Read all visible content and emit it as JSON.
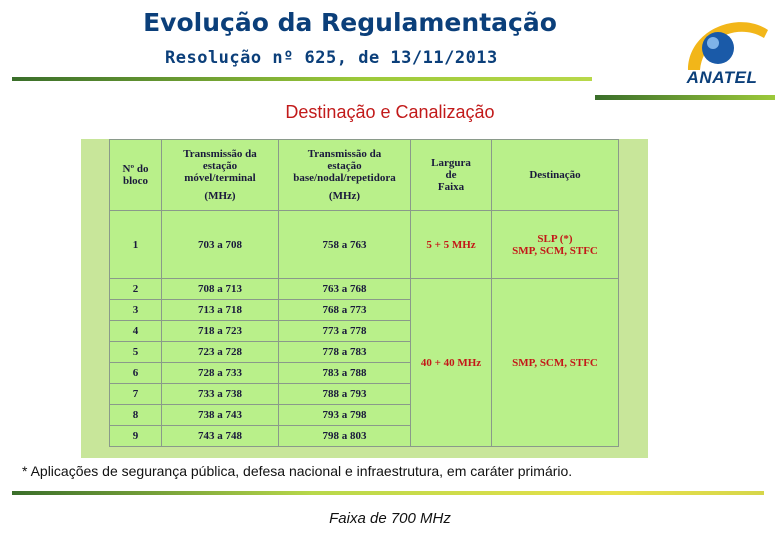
{
  "header": {
    "title": "Evolução da Regulamentação",
    "subtitle": "Resolução nº 625, de 13/11/2013"
  },
  "logo": {
    "text": "ANATEL",
    "icon": "anatel-globe-logo",
    "colors": [
      "#f2b619",
      "#1a5aa8"
    ]
  },
  "section_title": "Destinação e Canalização",
  "table": {
    "headers": {
      "block": [
        "Nº do",
        "bloco"
      ],
      "mobile": [
        "Transmissão da",
        "estação",
        "móvel/terminal",
        "(MHz)"
      ],
      "base": [
        "Transmissão da",
        "estação",
        "base/nodal/repetidora",
        "(MHz)"
      ],
      "width": [
        "Largura",
        "de",
        "Faixa"
      ],
      "destination": "Destinação"
    },
    "rows": [
      {
        "block": "1",
        "mobile": "703 a 708",
        "base": "758 a 763"
      },
      {
        "block": "2",
        "mobile": "708 a 713",
        "base": "763 a 768"
      },
      {
        "block": "3",
        "mobile": "713 a 718",
        "base": "768 a 773"
      },
      {
        "block": "4",
        "mobile": "718 a 723",
        "base": "773 a 778"
      },
      {
        "block": "5",
        "mobile": "723 a 728",
        "base": "778 a 783"
      },
      {
        "block": "6",
        "mobile": "728 a 733",
        "base": "783 a 788"
      },
      {
        "block": "7",
        "mobile": "733 a 738",
        "base": "788 a 793"
      },
      {
        "block": "8",
        "mobile": "738 a 743",
        "base": "793 a 798"
      },
      {
        "block": "9",
        "mobile": "743 a 748",
        "base": "798 a 803"
      }
    ],
    "group1": {
      "width": "5 + 5 MHz",
      "destination": [
        "SLP (*)",
        "SMP, SCM, STFC"
      ]
    },
    "group2": {
      "width": "40 + 40 MHz",
      "destination": "SMP, SCM, STFC"
    }
  },
  "note": "* Aplicações de segurança pública, defesa nacional e infraestrutura, em caráter primário.",
  "footer": "Faixa de 700 MHz",
  "colors": {
    "title": "#0b3f7a",
    "section": "#c21a1a",
    "table_bg": "#b9f08a",
    "panel_bg": "#c8e69a"
  }
}
